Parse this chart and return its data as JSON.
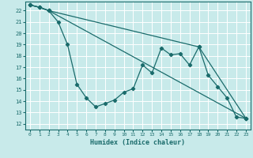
{
  "xlabel": "Humidex (Indice chaleur)",
  "bg_color": "#c8eaea",
  "grid_color": "#b8d8d8",
  "line_color": "#1a6b6b",
  "xlim": [
    -0.5,
    23.5
  ],
  "ylim": [
    11.5,
    22.8
  ],
  "xticks": [
    0,
    1,
    2,
    3,
    4,
    5,
    6,
    7,
    8,
    9,
    10,
    11,
    12,
    13,
    14,
    15,
    16,
    17,
    18,
    19,
    20,
    21,
    22,
    23
  ],
  "yticks": [
    12,
    13,
    14,
    15,
    16,
    17,
    18,
    19,
    20,
    21,
    22
  ],
  "series1_x": [
    0,
    1,
    2,
    3,
    4,
    5,
    6,
    7,
    8,
    9,
    10,
    11,
    12,
    13,
    14,
    15,
    16,
    17,
    18,
    19,
    20,
    21,
    22,
    23
  ],
  "series1_y": [
    22.5,
    22.3,
    22.0,
    21.0,
    19.0,
    15.5,
    14.3,
    13.5,
    13.8,
    14.1,
    14.8,
    15.1,
    17.2,
    16.5,
    18.7,
    18.1,
    18.2,
    17.2,
    18.8,
    16.3,
    15.3,
    14.3,
    12.6,
    12.5
  ],
  "series2_x": [
    0,
    1,
    2,
    23
  ],
  "series2_y": [
    22.5,
    22.3,
    22.0,
    12.5
  ],
  "series3_x": [
    0,
    1,
    2,
    18,
    23
  ],
  "series3_y": [
    22.5,
    22.3,
    22.0,
    18.8,
    12.5
  ]
}
